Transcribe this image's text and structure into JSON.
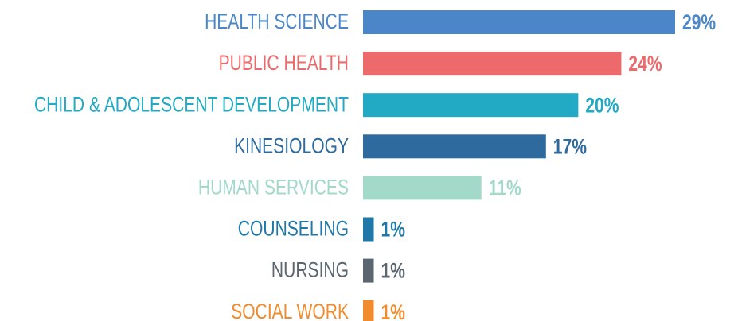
{
  "chart_data": {
    "type": "bar",
    "orientation": "horizontal",
    "categories": [
      "HEALTH SCIENCE",
      "PUBLIC HEALTH",
      "CHILD & ADOLESCENT DEVELOPMENT",
      "KINESIOLOGY",
      "HUMAN SERVICES",
      "COUNSELING",
      "NURSING",
      "SOCIAL WORK"
    ],
    "values": [
      29,
      24,
      20,
      17,
      11,
      1,
      1,
      1
    ],
    "value_labels": [
      "29%",
      "24%",
      "20%",
      "17%",
      "11%",
      "1%",
      "1%",
      "1%"
    ],
    "colors": [
      "#4a86c8",
      "#ec6a6b",
      "#22a9c3",
      "#2f6a9e",
      "#a3d9c9",
      "#1f78a8",
      "#5b6670",
      "#f08c2e"
    ]
  }
}
